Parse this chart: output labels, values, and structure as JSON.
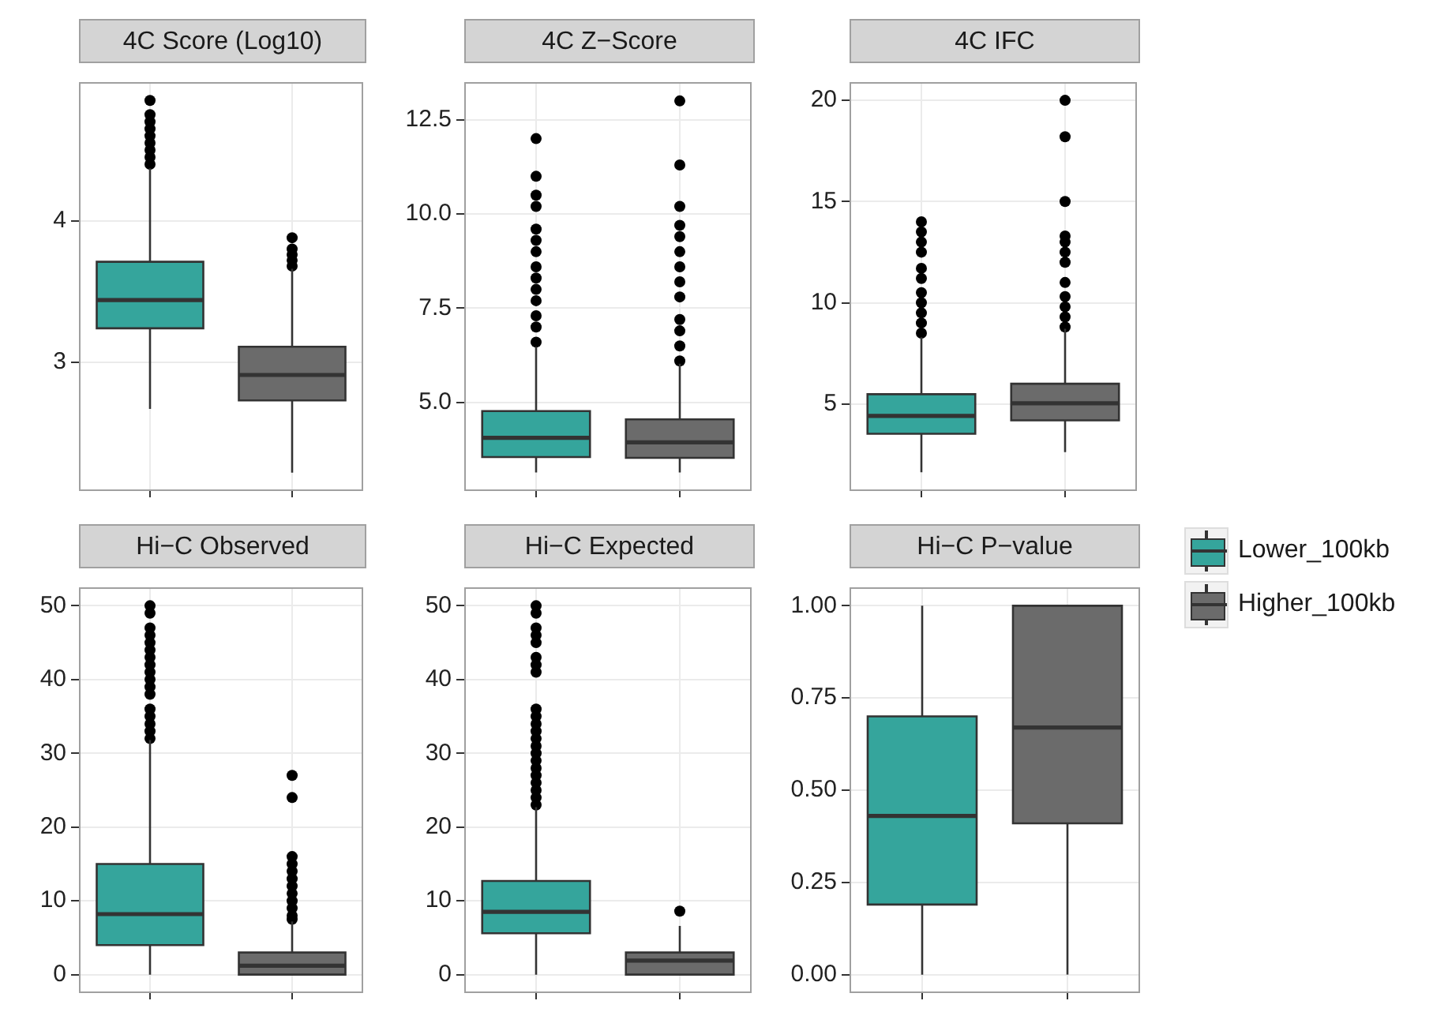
{
  "chart_data": [
    {
      "type": "box",
      "title": "4C Score (Log10)",
      "categories": [
        null,
        null
      ],
      "ylim": [
        2.09,
        4.98
      ],
      "yticks": [
        3,
        4
      ],
      "grid": true,
      "tick_labels": "y",
      "series": [
        {
          "color": "#35a59c",
          "boxes": [
            {
              "low": 2.67,
              "q1": 3.24,
              "median": 3.44,
              "q3": 3.71,
              "high": 4.37,
              "outliers": [
                4.4,
                4.45,
                4.5,
                4.55,
                4.6,
                4.65,
                4.7,
                4.75,
                4.85
              ]
            },
            null
          ]
        },
        {
          "color": "#6b6b6b",
          "boxes": [
            null,
            {
              "low": 2.22,
              "q1": 2.73,
              "median": 2.91,
              "q3": 3.11,
              "high": 3.66,
              "outliers": [
                3.68,
                3.72,
                3.76,
                3.8,
                3.88
              ]
            }
          ]
        }
      ]
    },
    {
      "type": "box",
      "title": "4C Z−Score",
      "categories": [
        null,
        null
      ],
      "ylim": [
        2.65,
        13.5
      ],
      "yticks": [
        {
          "value": 5,
          "label": "5.0"
        },
        {
          "value": 7.5,
          "label": "7.5"
        },
        {
          "value": 10,
          "label": "10.0"
        },
        {
          "value": 12.5,
          "label": "12.5"
        }
      ],
      "grid": true,
      "tick_labels": "y",
      "series": [
        {
          "color": "#35a59c",
          "boxes": [
            {
              "low": 3.14,
              "q1": 3.55,
              "median": 4.06,
              "q3": 4.77,
              "high": 6.48,
              "outliers": [
                6.6,
                7.0,
                7.3,
                7.7,
                8.0,
                8.3,
                8.6,
                9.0,
                9.3,
                9.6,
                10.2,
                10.5,
                11.0,
                12.0
              ]
            },
            null
          ]
        },
        {
          "color": "#6b6b6b",
          "boxes": [
            null,
            {
              "low": 3.14,
              "q1": 3.53,
              "median": 3.94,
              "q3": 4.55,
              "high": 6.03,
              "outliers": [
                6.1,
                6.5,
                6.9,
                7.2,
                7.8,
                8.2,
                8.6,
                9.0,
                9.4,
                9.7,
                10.2,
                11.3,
                13.0
              ]
            }
          ]
        }
      ]
    },
    {
      "type": "box",
      "title": "4C IFC",
      "categories": [
        null,
        null
      ],
      "ylim": [
        0.7,
        20.9
      ],
      "yticks": [
        5,
        10,
        15,
        20
      ],
      "grid": true,
      "tick_labels": "y",
      "series": [
        {
          "color": "#35a59c",
          "boxes": [
            {
              "low": 1.63,
              "q1": 3.53,
              "median": 4.41,
              "q3": 5.48,
              "high": 8.29,
              "outliers": [
                8.5,
                9,
                9.5,
                10,
                10.5,
                11.2,
                11.7,
                12.5,
                13,
                13.5,
                14
              ]
            },
            null
          ]
        },
        {
          "color": "#6b6b6b",
          "boxes": [
            null,
            {
              "low": 2.62,
              "q1": 4.19,
              "median": 5.03,
              "q3": 6.0,
              "high": 8.71,
              "outliers": [
                8.8,
                9.3,
                9.8,
                10.3,
                11,
                12,
                12.5,
                13,
                13.3,
                15,
                18.2,
                20
              ]
            }
          ]
        }
      ]
    },
    {
      "type": "box",
      "title": "Hi−C Observed",
      "categories": [
        null,
        null
      ],
      "ylim": [
        -2.5,
        52.5
      ],
      "yticks": [
        0,
        10,
        20,
        30,
        40,
        50
      ],
      "grid": true,
      "tick_labels": "y",
      "series": [
        {
          "color": "#35a59c",
          "boxes": [
            {
              "low": 0,
              "q1": 4.0,
              "median": 8.2,
              "q3": 15.0,
              "high": 31.8,
              "outliers": [
                32,
                33,
                34,
                35,
                36,
                38,
                39,
                40,
                41,
                42,
                43,
                44,
                45,
                46,
                47,
                49,
                50
              ]
            },
            null
          ]
        },
        {
          "color": "#6b6b6b",
          "boxes": [
            null,
            {
              "low": 0,
              "q1": 0,
              "median": 1.2,
              "q3": 3.0,
              "high": 7.2,
              "outliers": [
                7.5,
                8,
                9,
                10,
                11,
                12,
                13,
                14,
                15,
                16,
                24,
                27
              ]
            }
          ]
        }
      ]
    },
    {
      "type": "box",
      "title": "Hi−C Expected",
      "categories": [
        null,
        null
      ],
      "ylim": [
        -2.5,
        52.5
      ],
      "yticks": [
        0,
        10,
        20,
        30,
        40,
        50
      ],
      "grid": true,
      "tick_labels": "y",
      "series": [
        {
          "color": "#35a59c",
          "boxes": [
            {
              "low": 0,
              "q1": 5.6,
              "median": 8.5,
              "q3": 12.7,
              "high": 22.7,
              "outliers": [
                23,
                24,
                25,
                26,
                27,
                28,
                29,
                30,
                31,
                32,
                33,
                34,
                35,
                36,
                41,
                42,
                43,
                45,
                46,
                47,
                49,
                50
              ]
            },
            null
          ]
        },
        {
          "color": "#6b6b6b",
          "boxes": [
            null,
            {
              "low": 0,
              "q1": 0,
              "median": 1.9,
              "q3": 3.0,
              "high": 6.6,
              "outliers": [
                8.6
              ]
            }
          ]
        }
      ]
    },
    {
      "type": "box",
      "title": "Hi−C P−value",
      "categories": [
        null,
        null
      ],
      "ylim": [
        -0.05,
        1.05
      ],
      "yticks": [
        {
          "value": 0,
          "label": "0.00"
        },
        {
          "value": 0.25,
          "label": "0.25"
        },
        {
          "value": 0.5,
          "label": "0.50"
        },
        {
          "value": 0.75,
          "label": "0.75"
        },
        {
          "value": 1,
          "label": "1.00"
        }
      ],
      "grid": true,
      "tick_labels": "y",
      "legend": "right",
      "series": [
        {
          "name": "Lower_100kb",
          "color": "#35a59c",
          "boxes": [
            {
              "low": 0,
              "q1": 0.19,
              "median": 0.43,
              "q3": 0.7,
              "high": 1.0
            },
            null
          ]
        },
        {
          "name": "Higher_100kb",
          "color": "#6b6b6b",
          "boxes": [
            null,
            {
              "low": 0,
              "q1": 0.41,
              "median": 0.67,
              "q3": 1.0,
              "high": 1.0
            }
          ]
        }
      ]
    }
  ]
}
